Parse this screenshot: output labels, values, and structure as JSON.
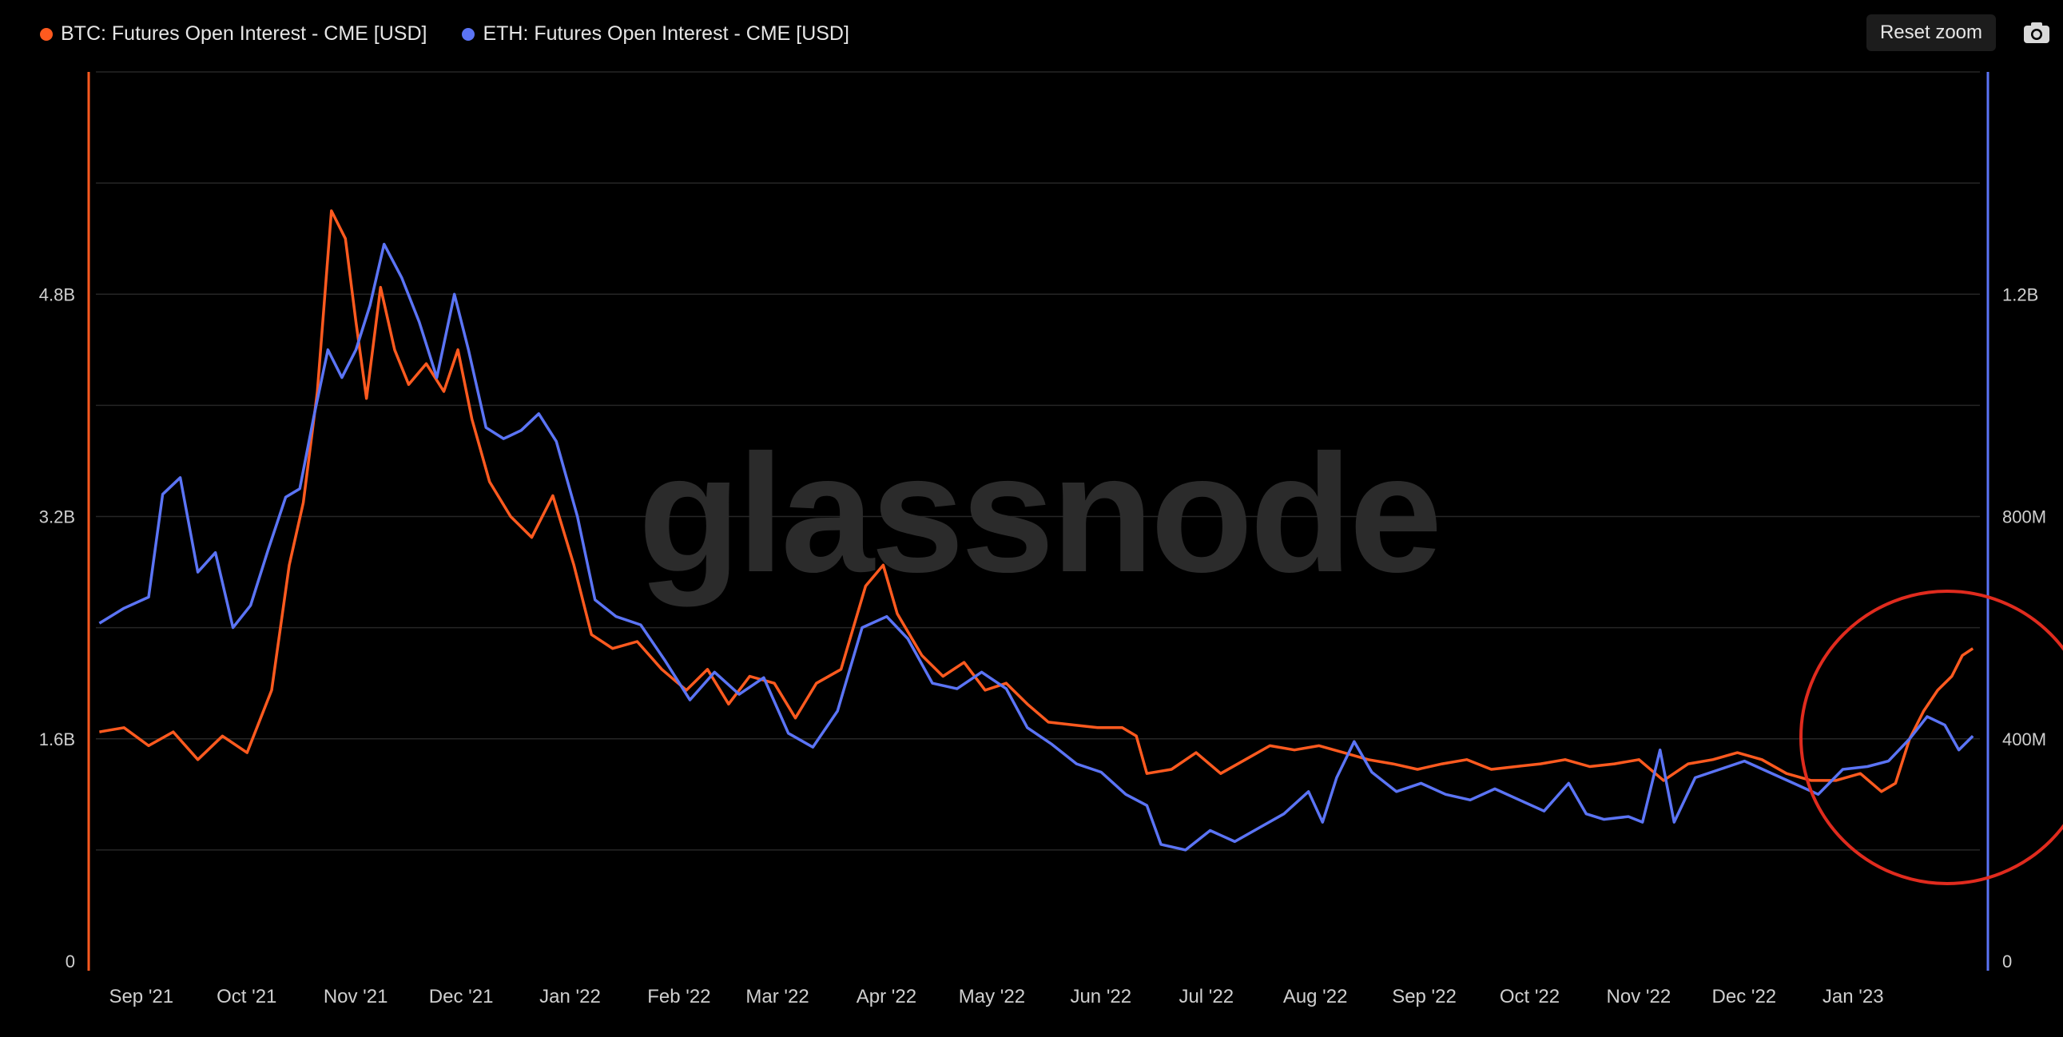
{
  "legend": {
    "btc_label": "BTC: Futures Open Interest - CME [USD]",
    "eth_label": "ETH: Futures Open Interest - CME [USD]"
  },
  "toolbar": {
    "reset_zoom_label": "Reset zoom",
    "camera_icon": "camera-icon"
  },
  "watermark": "glassnode",
  "colors": {
    "btc": "#ff5a1f",
    "eth": "#5b74f5",
    "annotation_circle": "#e02b1e",
    "background": "#000000",
    "grid": "#262626"
  },
  "chart_data": {
    "type": "line",
    "x_axis": {
      "type": "date",
      "range": [
        "2021-08-20",
        "2023-02-07"
      ],
      "tick_labels": [
        "Sep '21",
        "Oct '21",
        "Nov '21",
        "Dec '21",
        "Jan '22",
        "Feb '22",
        "Mar '22",
        "Apr '22",
        "May '22",
        "Jun '22",
        "Jul '22",
        "Aug '22",
        "Sep '22",
        "Oct '22",
        "Nov '22",
        "Dec '22",
        "Jan '23"
      ],
      "tick_dates": [
        "2021-09-01",
        "2021-10-01",
        "2021-11-01",
        "2021-12-01",
        "2022-01-01",
        "2022-02-01",
        "2022-03-01",
        "2022-04-01",
        "2022-05-01",
        "2022-06-01",
        "2022-07-01",
        "2022-08-01",
        "2022-09-01",
        "2022-10-01",
        "2022-11-01",
        "2022-12-01",
        "2023-01-01"
      ]
    },
    "y_axes": [
      {
        "id": "left",
        "series": "BTC: Futures Open Interest - CME [USD]",
        "range": [
          0,
          6400000000
        ],
        "ticks": [
          0,
          1600000000,
          3200000000,
          4800000000
        ],
        "tick_labels": [
          "0",
          "1.6B",
          "3.2B",
          "4.8B"
        ],
        "color": "#ff5a1f"
      },
      {
        "id": "right",
        "series": "ETH: Futures Open Interest - CME [USD]",
        "range": [
          0,
          1600000000
        ],
        "ticks": [
          0,
          400000000,
          800000000,
          1200000000
        ],
        "tick_labels": [
          "0",
          "400M",
          "800M",
          "1.2B"
        ],
        "color": "#5b74f5"
      }
    ],
    "grid": true,
    "legend_position": "top-left",
    "annotation": "red circle highlighting late Jan 2023 rise",
    "series": [
      {
        "name": "BTC: Futures Open Interest - CME [USD]",
        "axis": "left",
        "color": "#ff5a1f",
        "points": [
          [
            "2021-08-21",
            1650000000.0
          ],
          [
            "2021-08-28",
            1680000000.0
          ],
          [
            "2021-09-04",
            1550000000.0
          ],
          [
            "2021-09-11",
            1650000000.0
          ],
          [
            "2021-09-18",
            1450000000.0
          ],
          [
            "2021-09-25",
            1620000000.0
          ],
          [
            "2021-10-02",
            1500000000.0
          ],
          [
            "2021-10-09",
            1950000000.0
          ],
          [
            "2021-10-14",
            2850000000.0
          ],
          [
            "2021-10-18",
            3300000000.0
          ],
          [
            "2021-10-22",
            4100000000.0
          ],
          [
            "2021-10-26",
            5400000000.0
          ],
          [
            "2021-10-30",
            5200000000.0
          ],
          [
            "2021-11-02",
            4600000000.0
          ],
          [
            "2021-11-05",
            4050000000.0
          ],
          [
            "2021-11-09",
            4850000000.0
          ],
          [
            "2021-11-13",
            4400000000.0
          ],
          [
            "2021-11-17",
            4150000000.0
          ],
          [
            "2021-11-22",
            4300000000.0
          ],
          [
            "2021-11-27",
            4100000000.0
          ],
          [
            "2021-12-01",
            4400000000.0
          ],
          [
            "2021-12-05",
            3900000000.0
          ],
          [
            "2021-12-10",
            3450000000.0
          ],
          [
            "2021-12-16",
            3200000000.0
          ],
          [
            "2021-12-22",
            3050000000.0
          ],
          [
            "2021-12-28",
            3350000000.0
          ],
          [
            "2022-01-03",
            2850000000.0
          ],
          [
            "2022-01-08",
            2350000000.0
          ],
          [
            "2022-01-14",
            2250000000.0
          ],
          [
            "2022-01-21",
            2300000000.0
          ],
          [
            "2022-01-28",
            2100000000.0
          ],
          [
            "2022-02-04",
            1950000000.0
          ],
          [
            "2022-02-10",
            2100000000.0
          ],
          [
            "2022-02-16",
            1850000000.0
          ],
          [
            "2022-02-22",
            2050000000.0
          ],
          [
            "2022-03-01",
            2000000000.0
          ],
          [
            "2022-03-07",
            1750000000.0
          ],
          [
            "2022-03-13",
            2000000000.0
          ],
          [
            "2022-03-20",
            2100000000.0
          ],
          [
            "2022-03-27",
            2700000000.0
          ],
          [
            "2022-04-01",
            2850000000.0
          ],
          [
            "2022-04-05",
            2500000000.0
          ],
          [
            "2022-04-12",
            2200000000.0
          ],
          [
            "2022-04-18",
            2050000000.0
          ],
          [
            "2022-04-24",
            2150000000.0
          ],
          [
            "2022-04-30",
            1950000000.0
          ],
          [
            "2022-05-06",
            2000000000.0
          ],
          [
            "2022-05-12",
            1850000000.0
          ],
          [
            "2022-05-18",
            1720000000.0
          ],
          [
            "2022-05-25",
            1700000000.0
          ],
          [
            "2022-06-01",
            1680000000.0
          ],
          [
            "2022-06-08",
            1680000000.0
          ],
          [
            "2022-06-12",
            1620000000.0
          ],
          [
            "2022-06-15",
            1350000000.0
          ],
          [
            "2022-06-22",
            1380000000.0
          ],
          [
            "2022-06-29",
            1500000000.0
          ],
          [
            "2022-07-06",
            1350000000.0
          ],
          [
            "2022-07-13",
            1450000000.0
          ],
          [
            "2022-07-20",
            1550000000.0
          ],
          [
            "2022-07-27",
            1520000000.0
          ],
          [
            "2022-08-03",
            1550000000.0
          ],
          [
            "2022-08-10",
            1500000000.0
          ],
          [
            "2022-08-17",
            1450000000.0
          ],
          [
            "2022-08-24",
            1420000000.0
          ],
          [
            "2022-08-31",
            1380000000.0
          ],
          [
            "2022-09-07",
            1420000000.0
          ],
          [
            "2022-09-14",
            1450000000.0
          ],
          [
            "2022-09-21",
            1380000000.0
          ],
          [
            "2022-09-28",
            1400000000.0
          ],
          [
            "2022-10-05",
            1420000000.0
          ],
          [
            "2022-10-12",
            1450000000.0
          ],
          [
            "2022-10-19",
            1400000000.0
          ],
          [
            "2022-10-26",
            1420000000.0
          ],
          [
            "2022-11-02",
            1450000000.0
          ],
          [
            "2022-11-09",
            1300000000.0
          ],
          [
            "2022-11-16",
            1420000000.0
          ],
          [
            "2022-11-23",
            1450000000.0
          ],
          [
            "2022-11-30",
            1500000000.0
          ],
          [
            "2022-12-07",
            1450000000.0
          ],
          [
            "2022-12-14",
            1350000000.0
          ],
          [
            "2022-12-21",
            1300000000.0
          ],
          [
            "2022-12-28",
            1300000000.0
          ],
          [
            "2023-01-04",
            1350000000.0
          ],
          [
            "2023-01-10",
            1220000000.0
          ],
          [
            "2023-01-14",
            1280000000.0
          ],
          [
            "2023-01-18",
            1600000000.0
          ],
          [
            "2023-01-22",
            1800000000.0
          ],
          [
            "2023-01-26",
            1950000000.0
          ],
          [
            "2023-01-30",
            2050000000.0
          ],
          [
            "2023-02-02",
            2200000000.0
          ],
          [
            "2023-02-05",
            2250000000.0
          ]
        ]
      },
      {
        "name": "ETH: Futures Open Interest - CME [USD]",
        "axis": "right",
        "color": "#5b74f5",
        "points": [
          [
            "2021-08-21",
            608000000.0
          ],
          [
            "2021-08-28",
            635000000.0
          ],
          [
            "2021-09-04",
            655000000.0
          ],
          [
            "2021-09-08",
            840000000.0
          ],
          [
            "2021-09-13",
            870000000.0
          ],
          [
            "2021-09-18",
            700000000.0
          ],
          [
            "2021-09-23",
            735000000.0
          ],
          [
            "2021-09-28",
            600000000.0
          ],
          [
            "2021-10-03",
            640000000.0
          ],
          [
            "2021-10-08",
            740000000.0
          ],
          [
            "2021-10-13",
            835000000.0
          ],
          [
            "2021-10-17",
            850000000.0
          ],
          [
            "2021-10-21",
            980000000.0
          ],
          [
            "2021-10-25",
            1100000000.0
          ],
          [
            "2021-10-29",
            1050000000.0
          ],
          [
            "2021-11-02",
            1100000000.0
          ],
          [
            "2021-11-06",
            1180000000.0
          ],
          [
            "2021-11-10",
            1290000000.0
          ],
          [
            "2021-11-15",
            1230000000.0
          ],
          [
            "2021-11-20",
            1150000000.0
          ],
          [
            "2021-11-25",
            1050000000.0
          ],
          [
            "2021-11-30",
            1200000000.0
          ],
          [
            "2021-12-04",
            1100000000.0
          ],
          [
            "2021-12-09",
            960000000.0
          ],
          [
            "2021-12-14",
            940000000.0
          ],
          [
            "2021-12-19",
            955000000.0
          ],
          [
            "2021-12-24",
            985000000.0
          ],
          [
            "2021-12-29",
            935000000.0
          ],
          [
            "2022-01-04",
            800000000.0
          ],
          [
            "2022-01-09",
            650000000.0
          ],
          [
            "2022-01-15",
            620000000.0
          ],
          [
            "2022-01-22",
            605000000.0
          ],
          [
            "2022-01-29",
            540000000.0
          ],
          [
            "2022-02-05",
            470000000.0
          ],
          [
            "2022-02-12",
            520000000.0
          ],
          [
            "2022-02-19",
            480000000.0
          ],
          [
            "2022-02-26",
            510000000.0
          ],
          [
            "2022-03-05",
            410000000.0
          ],
          [
            "2022-03-12",
            385000000.0
          ],
          [
            "2022-03-19",
            450000000.0
          ],
          [
            "2022-03-26",
            600000000.0
          ],
          [
            "2022-04-02",
            620000000.0
          ],
          [
            "2022-04-08",
            580000000.0
          ],
          [
            "2022-04-15",
            500000000.0
          ],
          [
            "2022-04-22",
            490000000.0
          ],
          [
            "2022-04-29",
            520000000.0
          ],
          [
            "2022-05-06",
            490000000.0
          ],
          [
            "2022-05-12",
            420000000.0
          ],
          [
            "2022-05-19",
            390000000.0
          ],
          [
            "2022-05-26",
            355000000.0
          ],
          [
            "2022-06-02",
            340000000.0
          ],
          [
            "2022-06-09",
            300000000.0
          ],
          [
            "2022-06-15",
            280000000.0
          ],
          [
            "2022-06-19",
            210000000.0
          ],
          [
            "2022-06-26",
            200000000.0
          ],
          [
            "2022-07-03",
            235000000.0
          ],
          [
            "2022-07-10",
            215000000.0
          ],
          [
            "2022-07-17",
            240000000.0
          ],
          [
            "2022-07-24",
            265000000.0
          ],
          [
            "2022-07-31",
            305000000.0
          ],
          [
            "2022-08-04",
            250000000.0
          ],
          [
            "2022-08-08",
            330000000.0
          ],
          [
            "2022-08-13",
            395000000.0
          ],
          [
            "2022-08-18",
            340000000.0
          ],
          [
            "2022-08-25",
            305000000.0
          ],
          [
            "2022-09-01",
            320000000.0
          ],
          [
            "2022-09-08",
            300000000.0
          ],
          [
            "2022-09-15",
            290000000.0
          ],
          [
            "2022-09-22",
            310000000.0
          ],
          [
            "2022-09-29",
            290000000.0
          ],
          [
            "2022-10-06",
            270000000.0
          ],
          [
            "2022-10-13",
            320000000.0
          ],
          [
            "2022-10-18",
            265000000.0
          ],
          [
            "2022-10-23",
            255000000.0
          ],
          [
            "2022-10-30",
            260000000.0
          ],
          [
            "2022-11-03",
            250000000.0
          ],
          [
            "2022-11-08",
            380000000.0
          ],
          [
            "2022-11-12",
            250000000.0
          ],
          [
            "2022-11-18",
            330000000.0
          ],
          [
            "2022-11-25",
            345000000.0
          ],
          [
            "2022-12-02",
            360000000.0
          ],
          [
            "2022-12-09",
            340000000.0
          ],
          [
            "2022-12-16",
            320000000.0
          ],
          [
            "2022-12-23",
            300000000.0
          ],
          [
            "2022-12-30",
            345000000.0
          ],
          [
            "2023-01-06",
            350000000.0
          ],
          [
            "2023-01-12",
            360000000.0
          ],
          [
            "2023-01-18",
            400000000.0
          ],
          [
            "2023-01-23",
            440000000.0
          ],
          [
            "2023-01-28",
            425000000.0
          ],
          [
            "2023-02-01",
            380000000.0
          ],
          [
            "2023-02-05",
            405000000.0
          ]
        ]
      }
    ]
  }
}
